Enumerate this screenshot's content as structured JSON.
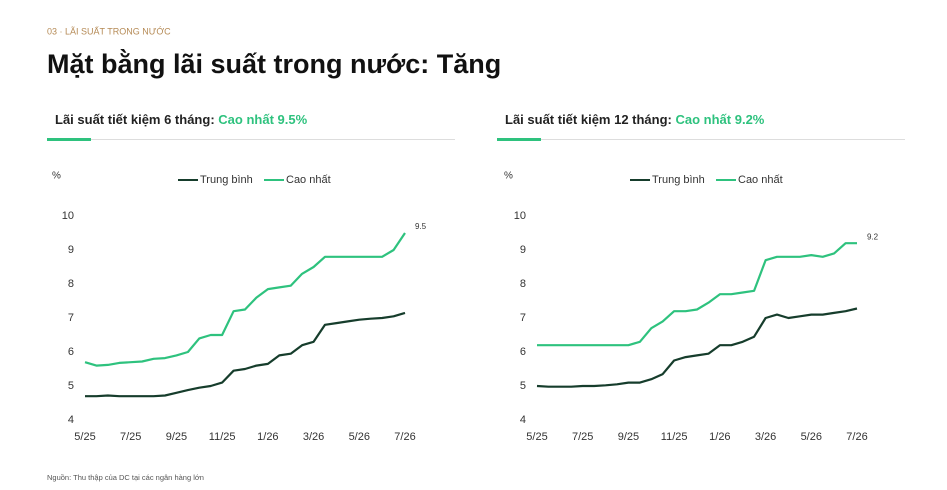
{
  "section": "03 · LÃI SUẤT TRONG NƯỚC",
  "title": "Mặt bằng lãi suất trong nước: Tăng",
  "source": "Nguồn: Thu thập của DC tại các ngân hàng lớn",
  "chart_data": [
    {
      "type": "line",
      "title": "Lãi suất tiết kiệm 6 tháng:",
      "subtitle": "Cao nhất 9.5%",
      "ylabel": "%",
      "categories": [
        "5/25",
        null,
        null,
        null,
        "7/25",
        null,
        null,
        null,
        "9/25",
        null,
        null,
        null,
        "11/25",
        null,
        null,
        null,
        "1/26",
        null,
        null,
        null,
        "3/26",
        null,
        null,
        null,
        "5/26",
        null,
        null,
        null,
        "7/26"
      ],
      "series": [
        {
          "name": "Trung bình",
          "color": "#163d2c",
          "values": [
            4.7,
            4.7,
            4.72,
            4.7,
            4.7,
            4.7,
            4.7,
            4.72,
            4.8,
            4.88,
            4.95,
            5.0,
            5.1,
            5.45,
            5.5,
            5.6,
            5.65,
            5.9,
            5.95,
            6.2,
            6.3,
            6.8,
            6.85,
            6.9,
            6.95,
            6.98,
            7.0,
            7.05,
            7.15
          ]
        },
        {
          "name": "Cao nhất",
          "color": "#2ec27e",
          "values": [
            5.7,
            5.6,
            5.62,
            5.68,
            5.7,
            5.72,
            5.8,
            5.82,
            5.9,
            6.0,
            6.4,
            6.5,
            6.5,
            7.2,
            7.25,
            7.6,
            7.85,
            7.9,
            7.95,
            8.3,
            8.5,
            8.8,
            8.8,
            8.8,
            8.8,
            8.8,
            8.8,
            9.0,
            9.5
          ]
        }
      ],
      "ylim": [
        4,
        10
      ],
      "yticks": [
        4,
        5,
        6,
        7,
        8,
        9,
        10
      ],
      "grid": false
    },
    {
      "type": "line",
      "title": "Lãi suất tiết kiệm 12 tháng:",
      "subtitle": "Cao nhất 9.2%",
      "ylabel": "%",
      "categories": [
        "5/25",
        null,
        null,
        null,
        "7/25",
        null,
        null,
        null,
        "9/25",
        null,
        null,
        null,
        "11/25",
        null,
        null,
        null,
        "1/26",
        null,
        null,
        null,
        "3/26",
        null,
        null,
        null,
        "5/26",
        null,
        null,
        null,
        "7/26"
      ],
      "series": [
        {
          "name": "Trung bình",
          "color": "#163d2c",
          "values": [
            5.0,
            4.98,
            4.98,
            4.98,
            5.0,
            5.0,
            5.02,
            5.05,
            5.1,
            5.1,
            5.2,
            5.35,
            5.75,
            5.85,
            5.9,
            5.95,
            6.2,
            6.2,
            6.3,
            6.45,
            7.0,
            7.1,
            7.0,
            7.05,
            7.1,
            7.1,
            7.15,
            7.2,
            7.28
          ]
        },
        {
          "name": "Cao nhất",
          "color": "#2ec27e",
          "values": [
            6.2,
            6.2,
            6.2,
            6.2,
            6.2,
            6.2,
            6.2,
            6.2,
            6.2,
            6.3,
            6.7,
            6.9,
            7.2,
            7.2,
            7.25,
            7.45,
            7.7,
            7.7,
            7.75,
            7.8,
            8.7,
            8.8,
            8.8,
            8.8,
            8.85,
            8.8,
            8.9,
            9.2,
            9.2
          ]
        }
      ],
      "ylim": [
        4,
        10
      ],
      "yticks": [
        4,
        5,
        6,
        7,
        8,
        9,
        10
      ],
      "grid": false
    }
  ]
}
